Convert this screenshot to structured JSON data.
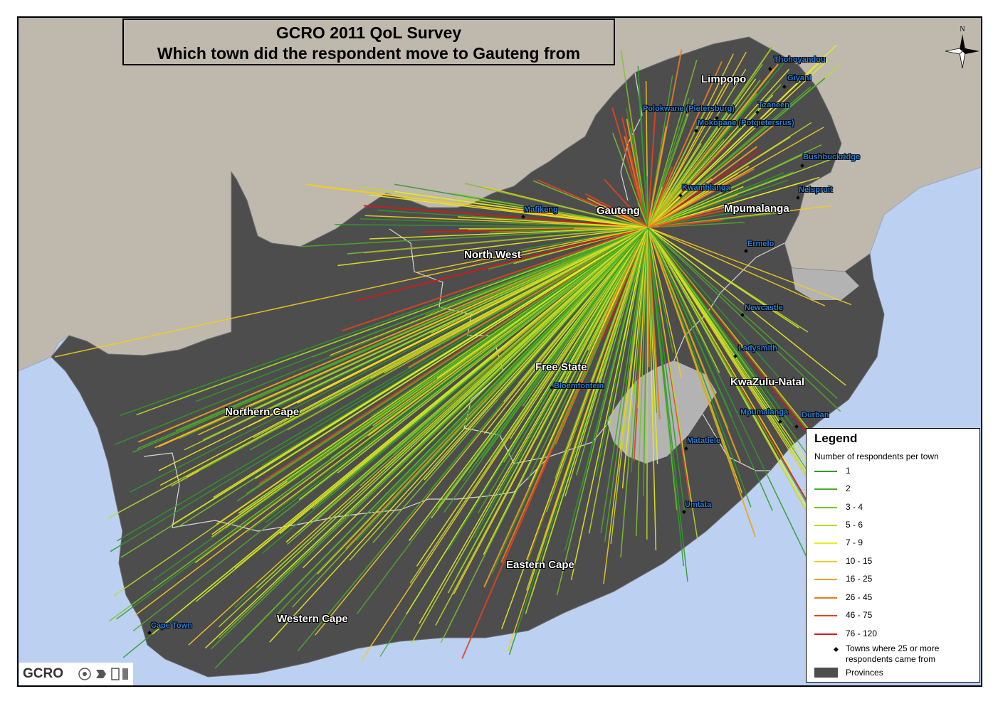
{
  "title": {
    "line1": "GCRO 2011 QoL Survey",
    "line2": "Which town did the respondent move to Gauteng from"
  },
  "colors": {
    "sea": "#bcd1f2",
    "neighbour_land": "#bfb8ad",
    "provinces": "#4d4d4d",
    "lesotho": "#b3b3b3",
    "border": "#cfcfcf"
  },
  "provinces": [
    "Limpopo",
    "Gauteng",
    "Mpumalanga",
    "North West",
    "Free State",
    "KwaZulu-Natal",
    "Northern Cape",
    "Eastern Cape",
    "Western Cape"
  ],
  "towns": [
    "Thohoyandou",
    "Giyani",
    "Tzaneen",
    "Polokwane (Pietersburg)",
    "Mokopane (Potgietersrus)",
    "Bushbuckridge",
    "Kwamhlanga",
    "Nelspruit",
    "Mafikeng",
    "Ermelo",
    "Newcastle",
    "Ladysmith",
    "Bloemfontein",
    "Mpumalanga",
    "Durban",
    "Matatiele",
    "Umtata",
    "Cape Town"
  ],
  "compass": {
    "north": "N"
  },
  "legend": {
    "title": "Legend",
    "subtitle": "Number of respondents per town",
    "classes": [
      {
        "label": "1",
        "color": "#2f9a2a"
      },
      {
        "label": "2",
        "color": "#4cab2a"
      },
      {
        "label": "3 - 4",
        "color": "#7cc42a"
      },
      {
        "label": "5 - 6",
        "color": "#b8dc2a"
      },
      {
        "label": "7 - 9",
        "color": "#e8ec22"
      },
      {
        "label": "10 - 15",
        "color": "#f4cc1e"
      },
      {
        "label": "16 - 25",
        "color": "#f0a220"
      },
      {
        "label": "26 - 45",
        "color": "#ea7a22"
      },
      {
        "label": "46 - 75",
        "color": "#e04420"
      },
      {
        "label": "76 - 120",
        "color": "#d81818"
      }
    ],
    "towns_symbol_label": "Towns where 25 or more respondents came from",
    "provinces_label": "Provinces"
  },
  "logo": {
    "text": "GCRO"
  }
}
